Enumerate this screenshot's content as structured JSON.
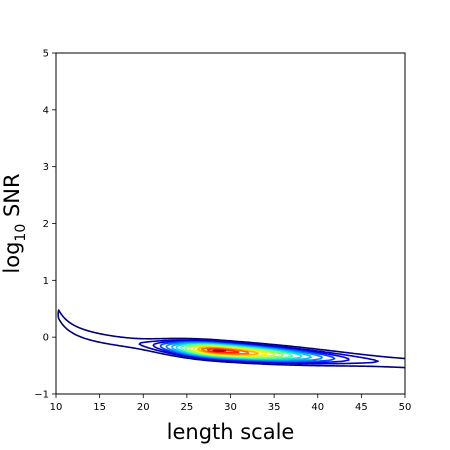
{
  "chart_data": {
    "type": "contour",
    "xlabel": "length scale",
    "ylabel": {
      "base": "log",
      "subscript": "10",
      "rest": " SNR"
    },
    "xlim": [
      10,
      50
    ],
    "ylim": [
      -1,
      5
    ],
    "xticks": [
      "10",
      "15",
      "20",
      "25",
      "30",
      "35",
      "40",
      "45",
      "50"
    ],
    "yticks": [
      "−1",
      "0",
      "1",
      "2",
      "3",
      "4",
      "5"
    ],
    "colormap": "jet",
    "peak": {
      "x": 28.5,
      "y": -0.24
    },
    "levels": [
      {
        "level": 0.05,
        "color": "#00007f"
      },
      {
        "level": 0.1,
        "color": "#0000b7"
      },
      {
        "level": 0.15,
        "color": "#0000f1"
      },
      {
        "level": 0.2,
        "color": "#0044ff"
      },
      {
        "level": 0.26,
        "color": "#0088ff"
      },
      {
        "level": 0.33,
        "color": "#00bcff"
      },
      {
        "level": 0.4,
        "color": "#1ce2da"
      },
      {
        "level": 0.48,
        "color": "#52ffa5"
      },
      {
        "level": 0.56,
        "color": "#8eff69"
      },
      {
        "level": 0.64,
        "color": "#c7ff30"
      },
      {
        "level": 0.72,
        "color": "#fff200"
      },
      {
        "level": 0.8,
        "color": "#ffb100"
      },
      {
        "level": 0.87,
        "color": "#ff6c00"
      },
      {
        "level": 0.94,
        "color": "#ff2900"
      },
      {
        "level": 0.985,
        "color": "#b30000"
      }
    ]
  }
}
